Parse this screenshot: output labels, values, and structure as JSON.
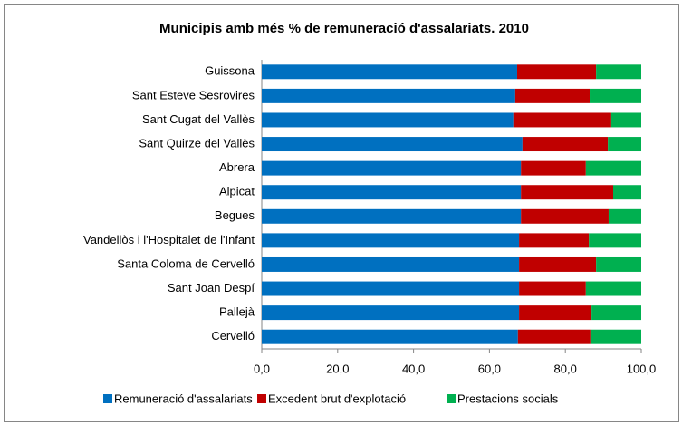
{
  "chart_data": {
    "type": "stacked_barh",
    "title": "Municipis amb més % de remuneració d'assalariats. 2010",
    "categories": [
      "Guissona",
      "Sant Esteve Sesrovires",
      "Sant Cugat del Vallès",
      "Sant Quirze del Vallès",
      "Abrera",
      "Alpicat",
      "Begues",
      "Vandellòs i l'Hospitalet de l'Infant",
      "Santa Coloma de Cervelló",
      "Sant Joan Despí",
      "Pallejà",
      "Cervelló"
    ],
    "series": [
      {
        "name": "Remuneració d'assalariats",
        "color": "#0070c0",
        "values": [
          67.3,
          66.8,
          66.3,
          68.7,
          68.3,
          68.3,
          68.3,
          67.8,
          67.8,
          67.8,
          67.8,
          67.5
        ]
      },
      {
        "name": "Excedent brut d'explotació",
        "color": "#c00000",
        "values": [
          20.8,
          19.6,
          25.8,
          22.5,
          17.1,
          24.3,
          23.1,
          18.4,
          20.3,
          17.6,
          19.1,
          19.1
        ]
      },
      {
        "name": "Prestacions socials",
        "color": "#00b050",
        "values": [
          11.9,
          13.6,
          7.9,
          8.8,
          14.6,
          7.4,
          8.6,
          13.8,
          11.9,
          14.6,
          13.1,
          13.4
        ]
      }
    ],
    "xlim": [
      0,
      100
    ],
    "xticks": [
      {
        "value": 0,
        "label": "0,0"
      },
      {
        "value": 20,
        "label": "20,0"
      },
      {
        "value": 40,
        "label": "40,0"
      },
      {
        "value": 60,
        "label": "60,0"
      },
      {
        "value": 80,
        "label": "80,0"
      },
      {
        "value": 100,
        "label": "100,0"
      }
    ],
    "legend": "bottom"
  }
}
